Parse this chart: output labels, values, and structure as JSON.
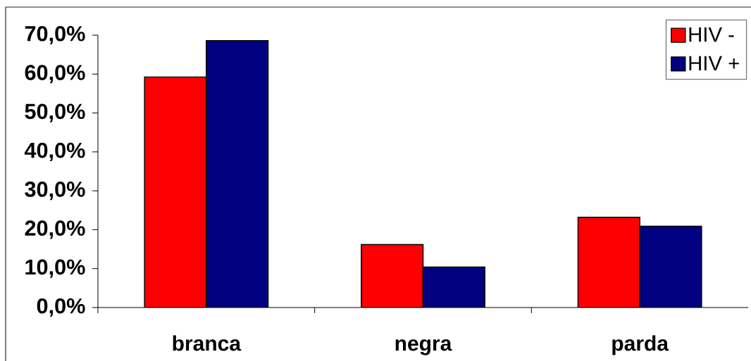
{
  "chart_data": {
    "type": "bar",
    "categories": [
      "branca",
      "negra",
      "parda"
    ],
    "series": [
      {
        "name": "HIV -",
        "color": "#ff0000",
        "values": [
          59.3,
          16.2,
          23.2
        ]
      },
      {
        "name": "HIV +",
        "color": "#000080",
        "values": [
          68.6,
          10.4,
          20.9
        ]
      }
    ],
    "ylim": [
      0,
      70
    ],
    "yticks": [
      {
        "value": 0,
        "label": "0,0%"
      },
      {
        "value": 10,
        "label": "10,0%"
      },
      {
        "value": 20,
        "label": "20,0%"
      },
      {
        "value": 30,
        "label": "30,0%"
      },
      {
        "value": 40,
        "label": "40,0%"
      },
      {
        "value": 50,
        "label": "50,0%"
      },
      {
        "value": 60,
        "label": "60,0%"
      },
      {
        "value": 70,
        "label": "70,0%"
      }
    ],
    "legend": "top right"
  }
}
